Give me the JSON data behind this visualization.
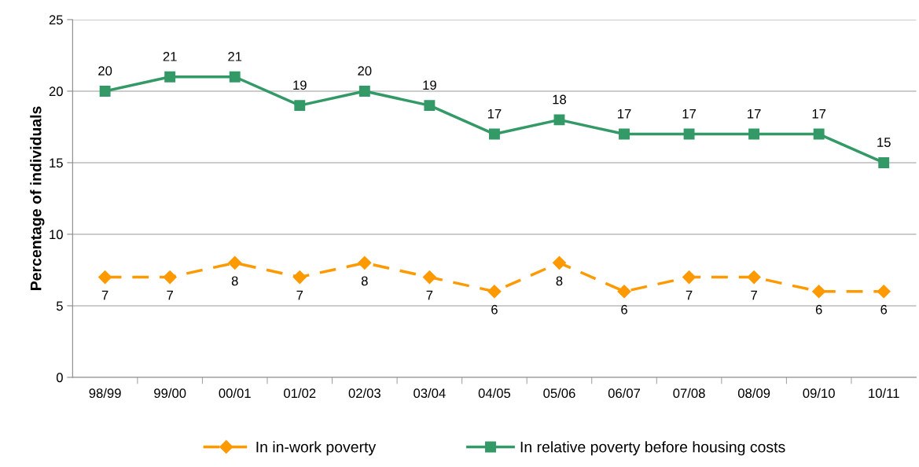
{
  "chart_data": {
    "type": "line",
    "ylabel": "Percentage of individuals",
    "categories": [
      "98/99",
      "99/00",
      "00/01",
      "01/02",
      "02/03",
      "03/04",
      "04/05",
      "05/06",
      "06/07",
      "07/08",
      "08/09",
      "09/10",
      "10/11"
    ],
    "series": [
      {
        "name": "In in-work poverty",
        "color": "#ff9900",
        "marker": "diamond",
        "line_style": "dashed",
        "values": [
          7,
          7,
          8,
          7,
          8,
          7,
          6,
          8,
          6,
          7,
          7,
          6,
          6
        ]
      },
      {
        "name": "In relative poverty before housing costs",
        "color": "#339966",
        "marker": "square",
        "line_style": "solid",
        "values": [
          20,
          21,
          21,
          19,
          20,
          19,
          17,
          18,
          17,
          17,
          17,
          17,
          15
        ]
      }
    ],
    "ylim": [
      0,
      25
    ],
    "yticks": [
      0,
      5,
      10,
      15,
      20,
      25
    ],
    "grid": "y",
    "legend": "bottom",
    "data_labels": true
  }
}
